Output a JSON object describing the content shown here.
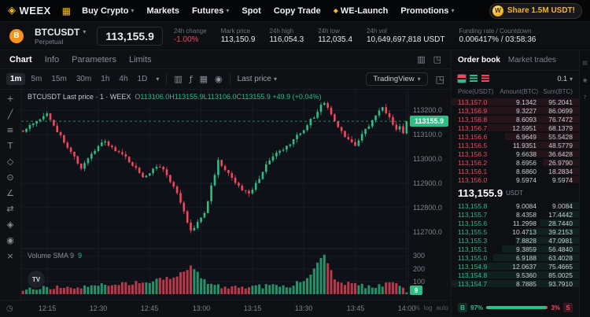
{
  "brand": {
    "name": "WEEX"
  },
  "nav": {
    "items": [
      {
        "label": "Buy Crypto",
        "caret": true
      },
      {
        "label": "Markets",
        "caret": false
      },
      {
        "label": "Futures",
        "caret": true
      },
      {
        "label": "Spot",
        "caret": false
      },
      {
        "label": "Copy Trade",
        "caret": false
      },
      {
        "label": "WE-Launch",
        "caret": false,
        "spark": true
      },
      {
        "label": "Promotions",
        "caret": true
      }
    ],
    "share_label": "Share 1.5M USDT!"
  },
  "ticker": {
    "symbol": "BTCUSDT",
    "contract_type": "Perpetual",
    "last_price": "113,155.9",
    "stats": [
      {
        "label": "24h change",
        "value": "-1.00%",
        "tone": "down"
      },
      {
        "label": "Mark price",
        "value": "113,150.9",
        "tone": "normal"
      },
      {
        "label": "24h high",
        "value": "116,054.3",
        "tone": "normal"
      },
      {
        "label": "24h low",
        "value": "112,035.4",
        "tone": "normal"
      },
      {
        "label": "24h vol",
        "value": "10,649,697,818 USDT",
        "tone": "normal"
      },
      {
        "label": "Funding rate / Countdown",
        "value": "0.006417% / 03:58:36",
        "tone": "normal"
      }
    ]
  },
  "chart_panel": {
    "tabs": [
      "Chart",
      "Info",
      "Parameters",
      "Limits"
    ],
    "active_tab": "Chart",
    "timeframes": [
      "1m",
      "5m",
      "15m",
      "30m",
      "1h",
      "4h",
      "1D"
    ],
    "active_timeframe": "1m",
    "toolbar_icons": [
      {
        "name": "candle-style-icon",
        "glyph": "▥"
      },
      {
        "name": "indicators-icon",
        "glyph": "ƒ"
      },
      {
        "name": "layout-grid-icon",
        "glyph": "▦"
      },
      {
        "name": "camera-icon",
        "glyph": "◉"
      }
    ],
    "price_source": "Last price",
    "tradingview_label": "TradingView",
    "legend": {
      "title": "BTCUSDT Last price · 1 · WEEX",
      "items": [
        {
          "k": "O",
          "v": "113106.0"
        },
        {
          "k": "H",
          "v": "113155.9"
        },
        {
          "k": "L",
          "v": "113106.0"
        },
        {
          "k": "C",
          "v": "113155.9"
        }
      ],
      "change": "+49.9 (+0.04%)"
    },
    "volume_legend": {
      "label": "Volume SMA 9",
      "value": "9"
    },
    "time_labels": [
      "12:15",
      "12:30",
      "12:45",
      "13:00",
      "13:15",
      "13:30",
      "13:45",
      "14:00"
    ],
    "scale_buttons": [
      "%",
      "log",
      "auto"
    ]
  },
  "chart_data": {
    "type": "candlestick",
    "symbol": "BTCUSDT",
    "interval": "1m",
    "last_price": 113155.9,
    "prev_open": 113106.0,
    "price_gridlines": [
      113200,
      113100,
      113000,
      112900,
      112800,
      112700
    ],
    "volume_gridlines": [
      300,
      200,
      100
    ],
    "volume_current": 9,
    "price_range": [
      112650,
      113260
    ],
    "candles_count": 113,
    "tick_indices": [
      7,
      22,
      37,
      52,
      67,
      82,
      97,
      112
    ],
    "close_keypoints": [
      [
        0,
        113120
      ],
      [
        4,
        113150
      ],
      [
        7,
        113190
      ],
      [
        12,
        113070
      ],
      [
        17,
        112960
      ],
      [
        23,
        113075
      ],
      [
        29,
        113020
      ],
      [
        35,
        112930
      ],
      [
        40,
        112975
      ],
      [
        45,
        112860
      ],
      [
        49,
        112700
      ],
      [
        53,
        112780
      ],
      [
        57,
        112990
      ],
      [
        62,
        112900
      ],
      [
        66,
        112850
      ],
      [
        72,
        113000
      ],
      [
        78,
        113060
      ],
      [
        83,
        113140
      ],
      [
        88,
        113235
      ],
      [
        93,
        113110
      ],
      [
        97,
        113060
      ],
      [
        101,
        113140
      ],
      [
        105,
        113215
      ],
      [
        109,
        113120
      ],
      [
        112,
        113156
      ]
    ],
    "volume_keypoints": [
      [
        0,
        45
      ],
      [
        10,
        55
      ],
      [
        20,
        65
      ],
      [
        30,
        80
      ],
      [
        35,
        95
      ],
      [
        45,
        140
      ],
      [
        49,
        210
      ],
      [
        55,
        70
      ],
      [
        62,
        55
      ],
      [
        70,
        60
      ],
      [
        78,
        70
      ],
      [
        83,
        130
      ],
      [
        88,
        310
      ],
      [
        91,
        120
      ],
      [
        96,
        70
      ],
      [
        102,
        60
      ],
      [
        108,
        85
      ],
      [
        112,
        28
      ]
    ]
  },
  "left_toolbar": {
    "tools": [
      {
        "name": "crosshair-tool-icon",
        "glyph": "+"
      },
      {
        "name": "trendline-tool-icon",
        "glyph": "╱"
      },
      {
        "name": "fib-tool-icon",
        "glyph": "≡"
      },
      {
        "name": "text-tool-icon",
        "glyph": "T"
      },
      {
        "name": "shapes-tool-icon",
        "glyph": "◇"
      },
      {
        "name": "projection-tool-icon",
        "glyph": "⊙"
      },
      {
        "name": "angle-tool-icon",
        "glyph": "∠"
      },
      {
        "name": "compare-tool-icon",
        "glyph": "⇄"
      },
      {
        "name": "magnet-tool-icon",
        "glyph": "◈"
      },
      {
        "name": "visibility-tool-icon",
        "glyph": "◉"
      },
      {
        "name": "remove-drawings-icon",
        "glyph": "×"
      }
    ]
  },
  "order_book": {
    "tabs": [
      "Order book",
      "Market trades"
    ],
    "active_tab": "Order book",
    "tick_size": "0.1",
    "headers": [
      "Price(USDT)",
      "Amount(BTC)",
      "Sum(BTC)"
    ],
    "asks": [
      [
        "113,157.0",
        "9.1342",
        "95.2041"
      ],
      [
        "113,156.9",
        "9.3227",
        "86.0699"
      ],
      [
        "113,156.8",
        "8.6093",
        "76.7472"
      ],
      [
        "113,156.7",
        "12.5951",
        "68.1379"
      ],
      [
        "113,156.6",
        "6.9649",
        "55.5428"
      ],
      [
        "113,156.5",
        "11.9351",
        "48.5779"
      ],
      [
        "113,156.3",
        "9.6638",
        "36.6428"
      ],
      [
        "113,156.2",
        "8.6956",
        "26.9790"
      ],
      [
        "113,156.1",
        "8.6860",
        "18.2834"
      ],
      [
        "113,156.0",
        "9.5974",
        "9.5974"
      ]
    ],
    "mid_price": "113,155.9",
    "mid_unit": "USDT",
    "bids": [
      [
        "113,155.8",
        "9.0084",
        "9.0084"
      ],
      [
        "113,155.7",
        "8.4358",
        "17.4442"
      ],
      [
        "113,155.6",
        "11.2998",
        "28.7440"
      ],
      [
        "113,155.5",
        "10.4713",
        "39.2153"
      ],
      [
        "113,155.3",
        "7.8828",
        "47.0981"
      ],
      [
        "113,155.1",
        "9.3859",
        "56.4840"
      ],
      [
        "113,155.0",
        "6.9188",
        "63.4028"
      ],
      [
        "113,154.9",
        "12.0637",
        "75.4665"
      ],
      [
        "113,154.8",
        "9.5360",
        "85.0025"
      ],
      [
        "113,154.7",
        "8.7885",
        "93.7910"
      ]
    ],
    "buy_label": "B",
    "buy_ratio": "97%",
    "sell_ratio": "3%",
    "sell_label": "S"
  },
  "right_rail": {
    "icons": [
      {
        "name": "list-icon",
        "glyph": "▤"
      },
      {
        "name": "chat-icon",
        "glyph": "◉"
      },
      {
        "name": "help-icon",
        "glyph": "?"
      }
    ]
  },
  "colors": {
    "green": "#2ebd85",
    "red": "#f6465d",
    "gold": "#f7b52c",
    "chart_up": "#2ebd85",
    "chart_down": "#f6465d"
  }
}
